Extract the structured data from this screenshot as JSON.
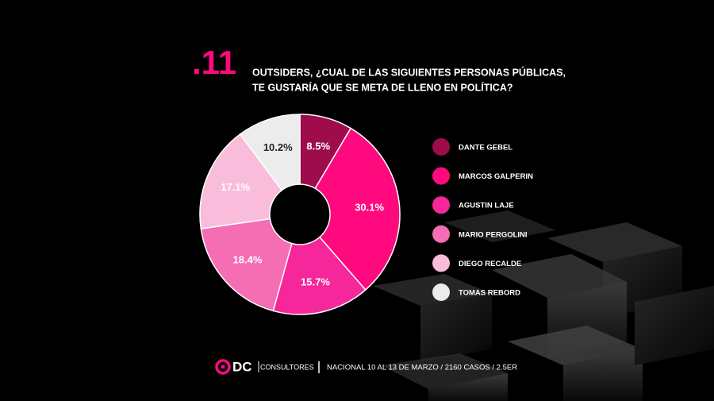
{
  "chart_data": {
    "type": "donut",
    "number": ".11",
    "title": [
      "OUTSIDERS, ¿CUAL DE LAS SIGUIENTES PERSONAS PÚBLICAS,",
      "TE GUSTARÍA QUE SE META DE LLENO EN POLÍTICA?"
    ],
    "categories": [
      "DANTE GEBEL",
      "MARCOS GALPERIN",
      "AGUSTIN LAJE",
      "MARIO PERGOLINI",
      "DIEGO RECALDE",
      "TOMAS REBORD"
    ],
    "values": [
      8.5,
      30.1,
      15.7,
      18.4,
      17.1,
      10.2
    ],
    "value_labels": [
      "8.5%",
      "30.1%",
      "15.7%",
      "18.4%",
      "17.1%",
      "10.2%"
    ],
    "colors": [
      "#9e0c4c",
      "#ff0a7e",
      "#f5279a",
      "#f56db3",
      "#f9bddb",
      "#ececec"
    ]
  },
  "footer": {
    "brand": "DC",
    "brand_sub": "CONSULTORES",
    "note": "NACIONAL  10 AL 13 DE MARZO / 2160 CASOS / 2.5ER"
  }
}
